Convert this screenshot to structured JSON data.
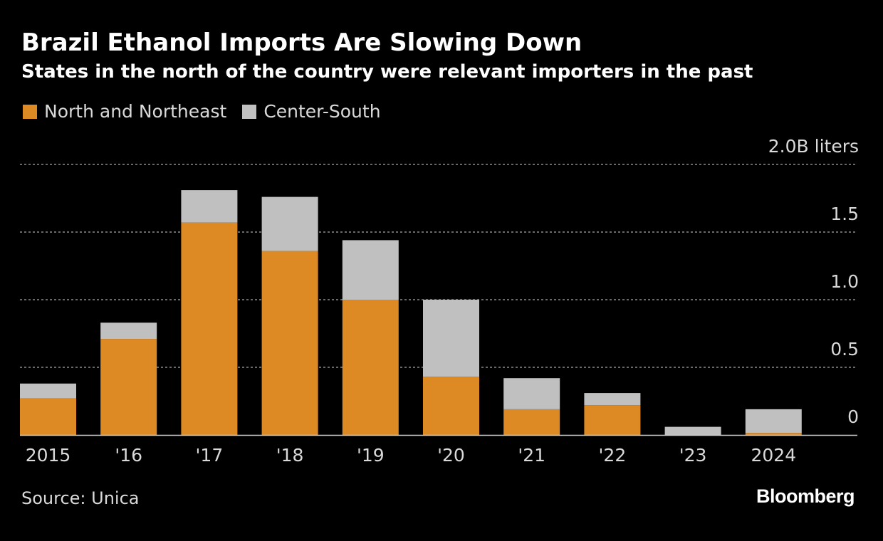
{
  "header": {
    "title": "Brazil Ethanol Imports Are Slowing Down",
    "subtitle": "States in the north of the country were relevant importers in the past"
  },
  "footer": {
    "source": "Source: Unica",
    "brand": "Bloomberg"
  },
  "colors": {
    "north_northeast": "#dd8a25",
    "center_south": "#c0c0c0",
    "gridline": "#8c8c8c",
    "axis": "#d0d0d0",
    "text": "#d9d9d9"
  },
  "chart_data": {
    "type": "bar",
    "stacked": true,
    "title": "Brazil Ethanol Imports Are Slowing Down",
    "subtitle": "States in the north of the country were relevant importers in the past",
    "categories": [
      "2015",
      "'16",
      "'17",
      "'18",
      "'19",
      "'20",
      "'21",
      "'22",
      "'23",
      "2024"
    ],
    "series": [
      {
        "name": "North and Northeast",
        "values": [
          0.27,
          0.71,
          1.57,
          1.36,
          1.0,
          0.43,
          0.19,
          0.22,
          0.0,
          0.015
        ]
      },
      {
        "name": "Center-South",
        "values": [
          0.11,
          0.12,
          0.24,
          0.4,
          0.44,
          0.57,
          0.23,
          0.09,
          0.06,
          0.175
        ]
      }
    ],
    "ylim": [
      0,
      2.0
    ],
    "y_ticks": [
      0,
      0.5,
      1.0,
      1.5,
      2.0
    ],
    "y_tick_labels": [
      "0",
      "0.5",
      "1.0",
      "1.5",
      "2.0B liters"
    ],
    "xlabel": "",
    "ylabel": "",
    "grid": true,
    "legend_position": "top-left",
    "source": "Source: Unica"
  }
}
